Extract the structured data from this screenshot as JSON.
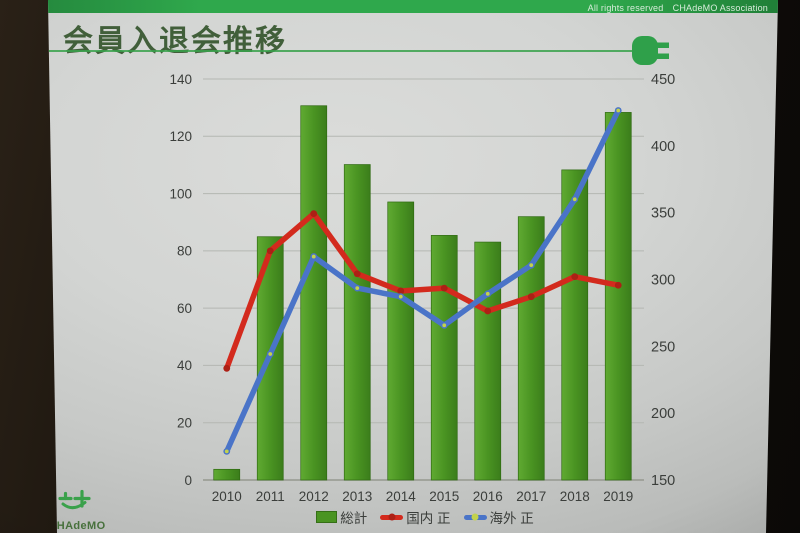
{
  "slide": {
    "title": "会員入退会推移",
    "copyright": "All rights reserved　CHAdeMO Association"
  },
  "footer": {
    "logo_text": "CHAdeMO"
  },
  "chart_data": {
    "type": "combo_bar_line",
    "categories": [
      "2010",
      "2011",
      "2012",
      "2013",
      "2014",
      "2015",
      "2016",
      "2017",
      "2018",
      "2019"
    ],
    "series": [
      {
        "name": "総計",
        "kind": "bar",
        "axis": "right",
        "color": "#4a9422",
        "values": [
          158,
          332,
          430,
          386,
          358,
          333,
          328,
          347,
          382,
          425
        ]
      },
      {
        "name": "国内 正",
        "kind": "line",
        "axis": "left",
        "color": "#d32a1d",
        "marker_color": "#ad2015",
        "values": [
          39,
          80,
          93,
          72,
          66,
          67,
          59,
          64,
          71,
          68
        ]
      },
      {
        "name": "海外 正",
        "kind": "line",
        "axis": "left",
        "color": "#4a74c8",
        "marker_color": "#4a74c8",
        "marker_center": "#c3d24d",
        "values": [
          10,
          44,
          78,
          67,
          64,
          54,
          65,
          75,
          98,
          129
        ]
      }
    ],
    "left_axis": {
      "min": 0,
      "max": 140,
      "step": 20,
      "applies_to": [
        "国内 正",
        "海外 正"
      ]
    },
    "right_axis": {
      "min": 150,
      "max": 450,
      "step": 50,
      "applies_to": [
        "総計"
      ]
    },
    "grid": "horizontal",
    "legend_position": "bottom-center"
  },
  "colors": {
    "header_green": "#2fa84c",
    "title_green": "#415f3a",
    "bar_gradient": [
      "#60aa32",
      "#4a9422",
      "#3b7d1b"
    ],
    "bar_border": "#2f6a12",
    "line_red": "#d32a1d",
    "line_blue": "#4a74c8",
    "marker_center_yellow": "#c3d24d",
    "gridline": "#b4b7b2",
    "axis_line": "#95988f",
    "tick_text": "#3b3e3b"
  },
  "icons": {
    "plug": "plug-icon",
    "logo": "chademo-logo-icon"
  }
}
